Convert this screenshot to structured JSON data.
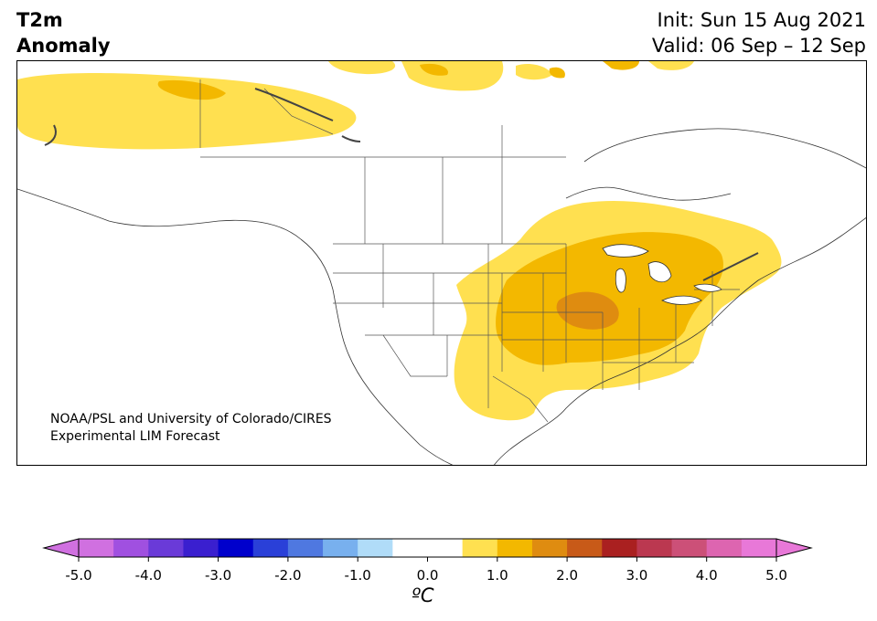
{
  "title": {
    "line1": "T2m",
    "line2": "Anomaly"
  },
  "init": "Init: Sun 15 Aug 2021",
  "valid": "Valid: 06 Sep – 12 Sep",
  "credit": {
    "line1": "NOAA/PSL and University of Colorado/CIRES",
    "line2": "Experimental LIM Forecast"
  },
  "colorbar": {
    "unit": "ºC",
    "ticks": [
      "-5.0",
      "-4.0",
      "-3.0",
      "-2.0",
      "-1.0",
      "0.0",
      "1.0",
      "2.0",
      "3.0",
      "4.0",
      "5.0"
    ],
    "levels": [
      -5,
      -4.5,
      -4,
      -3.5,
      -3,
      -2.5,
      -2,
      -1.5,
      -1,
      -0.5,
      0.5,
      1,
      1.5,
      2,
      2.5,
      3,
      3.5,
      4,
      4.5,
      5
    ],
    "colors": [
      "#d070e0",
      "#a050e0",
      "#6a3ad8",
      "#3a1fcf",
      "#0000cc",
      "#2a40d8",
      "#4f78e0",
      "#78b0ee",
      "#b0dcf8",
      "#ffffff",
      "#ffe050",
      "#f3b800",
      "#df8c10",
      "#c85a18",
      "#aa2020",
      "#bb3850",
      "#cc5078",
      "#dd65b0",
      "#e878d8"
    ],
    "under_color": "#d070e0",
    "over_color": "#e878d8"
  },
  "anomaly_regions": [
    {
      "level": "0.5-1.0",
      "color": "#ffe050"
    },
    {
      "level": "1.0-1.5",
      "color": "#f3b800"
    },
    {
      "level": "1.5-2.0",
      "color": "#df8c10"
    }
  ]
}
